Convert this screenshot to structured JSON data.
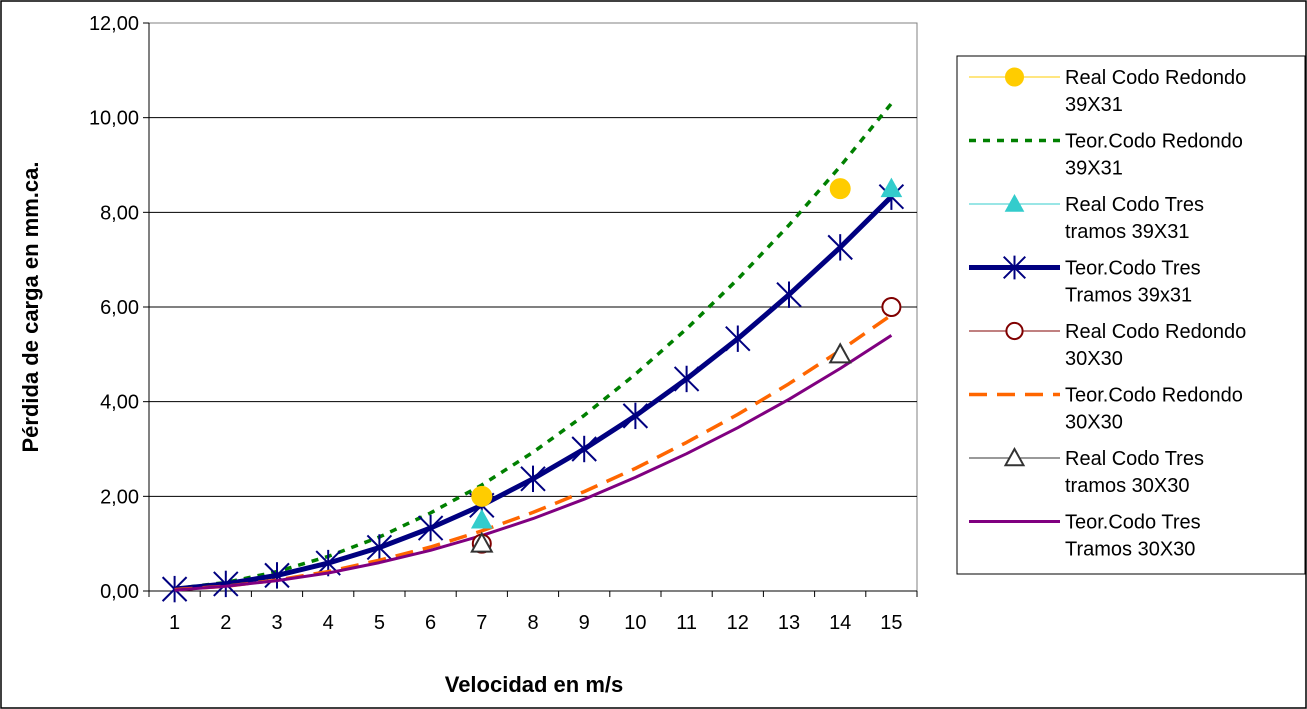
{
  "chart_data": {
    "type": "line",
    "title": "",
    "xlabel": "Velocidad en m/s",
    "ylabel": "Pérdida de carga en mm.ca.",
    "ylim": [
      0,
      12
    ],
    "y_ticks": [
      "0,00",
      "2,00",
      "4,00",
      "6,00",
      "8,00",
      "10,00",
      "12,00"
    ],
    "categories": [
      "1",
      "2",
      "3",
      "4",
      "5",
      "6",
      "7",
      "8",
      "9",
      "10",
      "11",
      "12",
      "13",
      "14",
      "15"
    ],
    "grid": "horizontal",
    "legend_position": "right",
    "series": [
      {
        "name": "Real Codo Redondo 39X31",
        "legend_lines": [
          "Real Codo Redondo",
          "39X31"
        ],
        "style": "marker-circle",
        "color": "#FFCC00",
        "points": [
          [
            7,
            2.0
          ],
          [
            14,
            8.5
          ]
        ]
      },
      {
        "name": "Teor.Codo Redondo 39X31",
        "legend_lines": [
          "Teor.Codo Redondo",
          "39X31"
        ],
        "style": "dotted",
        "color": "#008000",
        "values": [
          0.05,
          0.18,
          0.41,
          0.73,
          1.14,
          1.65,
          2.24,
          2.93,
          3.71,
          4.58,
          5.54,
          6.59,
          7.73,
          8.97,
          10.3
        ]
      },
      {
        "name": "Real Codo Tres tramos 39X31",
        "legend_lines": [
          "Real Codo Tres",
          "tramos 39X31"
        ],
        "style": "marker-triangle",
        "color": "#33CCCC",
        "points": [
          [
            7,
            1.5
          ],
          [
            15,
            8.5
          ]
        ]
      },
      {
        "name": "Teor.Codo Tres Tramos 39x31",
        "legend_lines": [
          "Teor.Codo Tres",
          "Tramos 39x31"
        ],
        "style": "thick-star",
        "color": "#000080",
        "values": [
          0.04,
          0.15,
          0.33,
          0.59,
          0.92,
          1.33,
          1.81,
          2.37,
          3.0,
          3.7,
          4.48,
          5.33,
          6.26,
          7.26,
          8.33
        ]
      },
      {
        "name": "Real Codo Redondo 30X30",
        "legend_lines": [
          "Real Codo Redondo",
          "30X30"
        ],
        "style": "marker-circle-open",
        "color": "#800000",
        "points": [
          [
            7,
            1.0
          ],
          [
            15,
            6.0
          ]
        ]
      },
      {
        "name": "Teor.Codo Redondo 30X30",
        "legend_lines": [
          "Teor.Codo Redondo",
          "30X30"
        ],
        "style": "dashed",
        "color": "#FF6600",
        "values": [
          0.03,
          0.1,
          0.23,
          0.41,
          0.65,
          0.93,
          1.27,
          1.66,
          2.1,
          2.59,
          3.14,
          3.73,
          4.38,
          5.08,
          5.83
        ]
      },
      {
        "name": "Real Codo Tres tramos 30X30",
        "legend_lines": [
          "Real Codo Tres",
          "tramos 30X30"
        ],
        "style": "marker-triangle-open",
        "color": "#333333",
        "points": [
          [
            7,
            1.0
          ],
          [
            14,
            5.0
          ]
        ]
      },
      {
        "name": "Teor.Codo Tres Tramos 30X30",
        "legend_lines": [
          "Teor.Codo Tres",
          "Tramos 30X30"
        ],
        "style": "solid",
        "color": "#800080",
        "values": [
          0.02,
          0.1,
          0.22,
          0.38,
          0.6,
          0.86,
          1.17,
          1.53,
          1.94,
          2.4,
          2.9,
          3.45,
          4.05,
          4.7,
          5.4
        ]
      }
    ]
  }
}
